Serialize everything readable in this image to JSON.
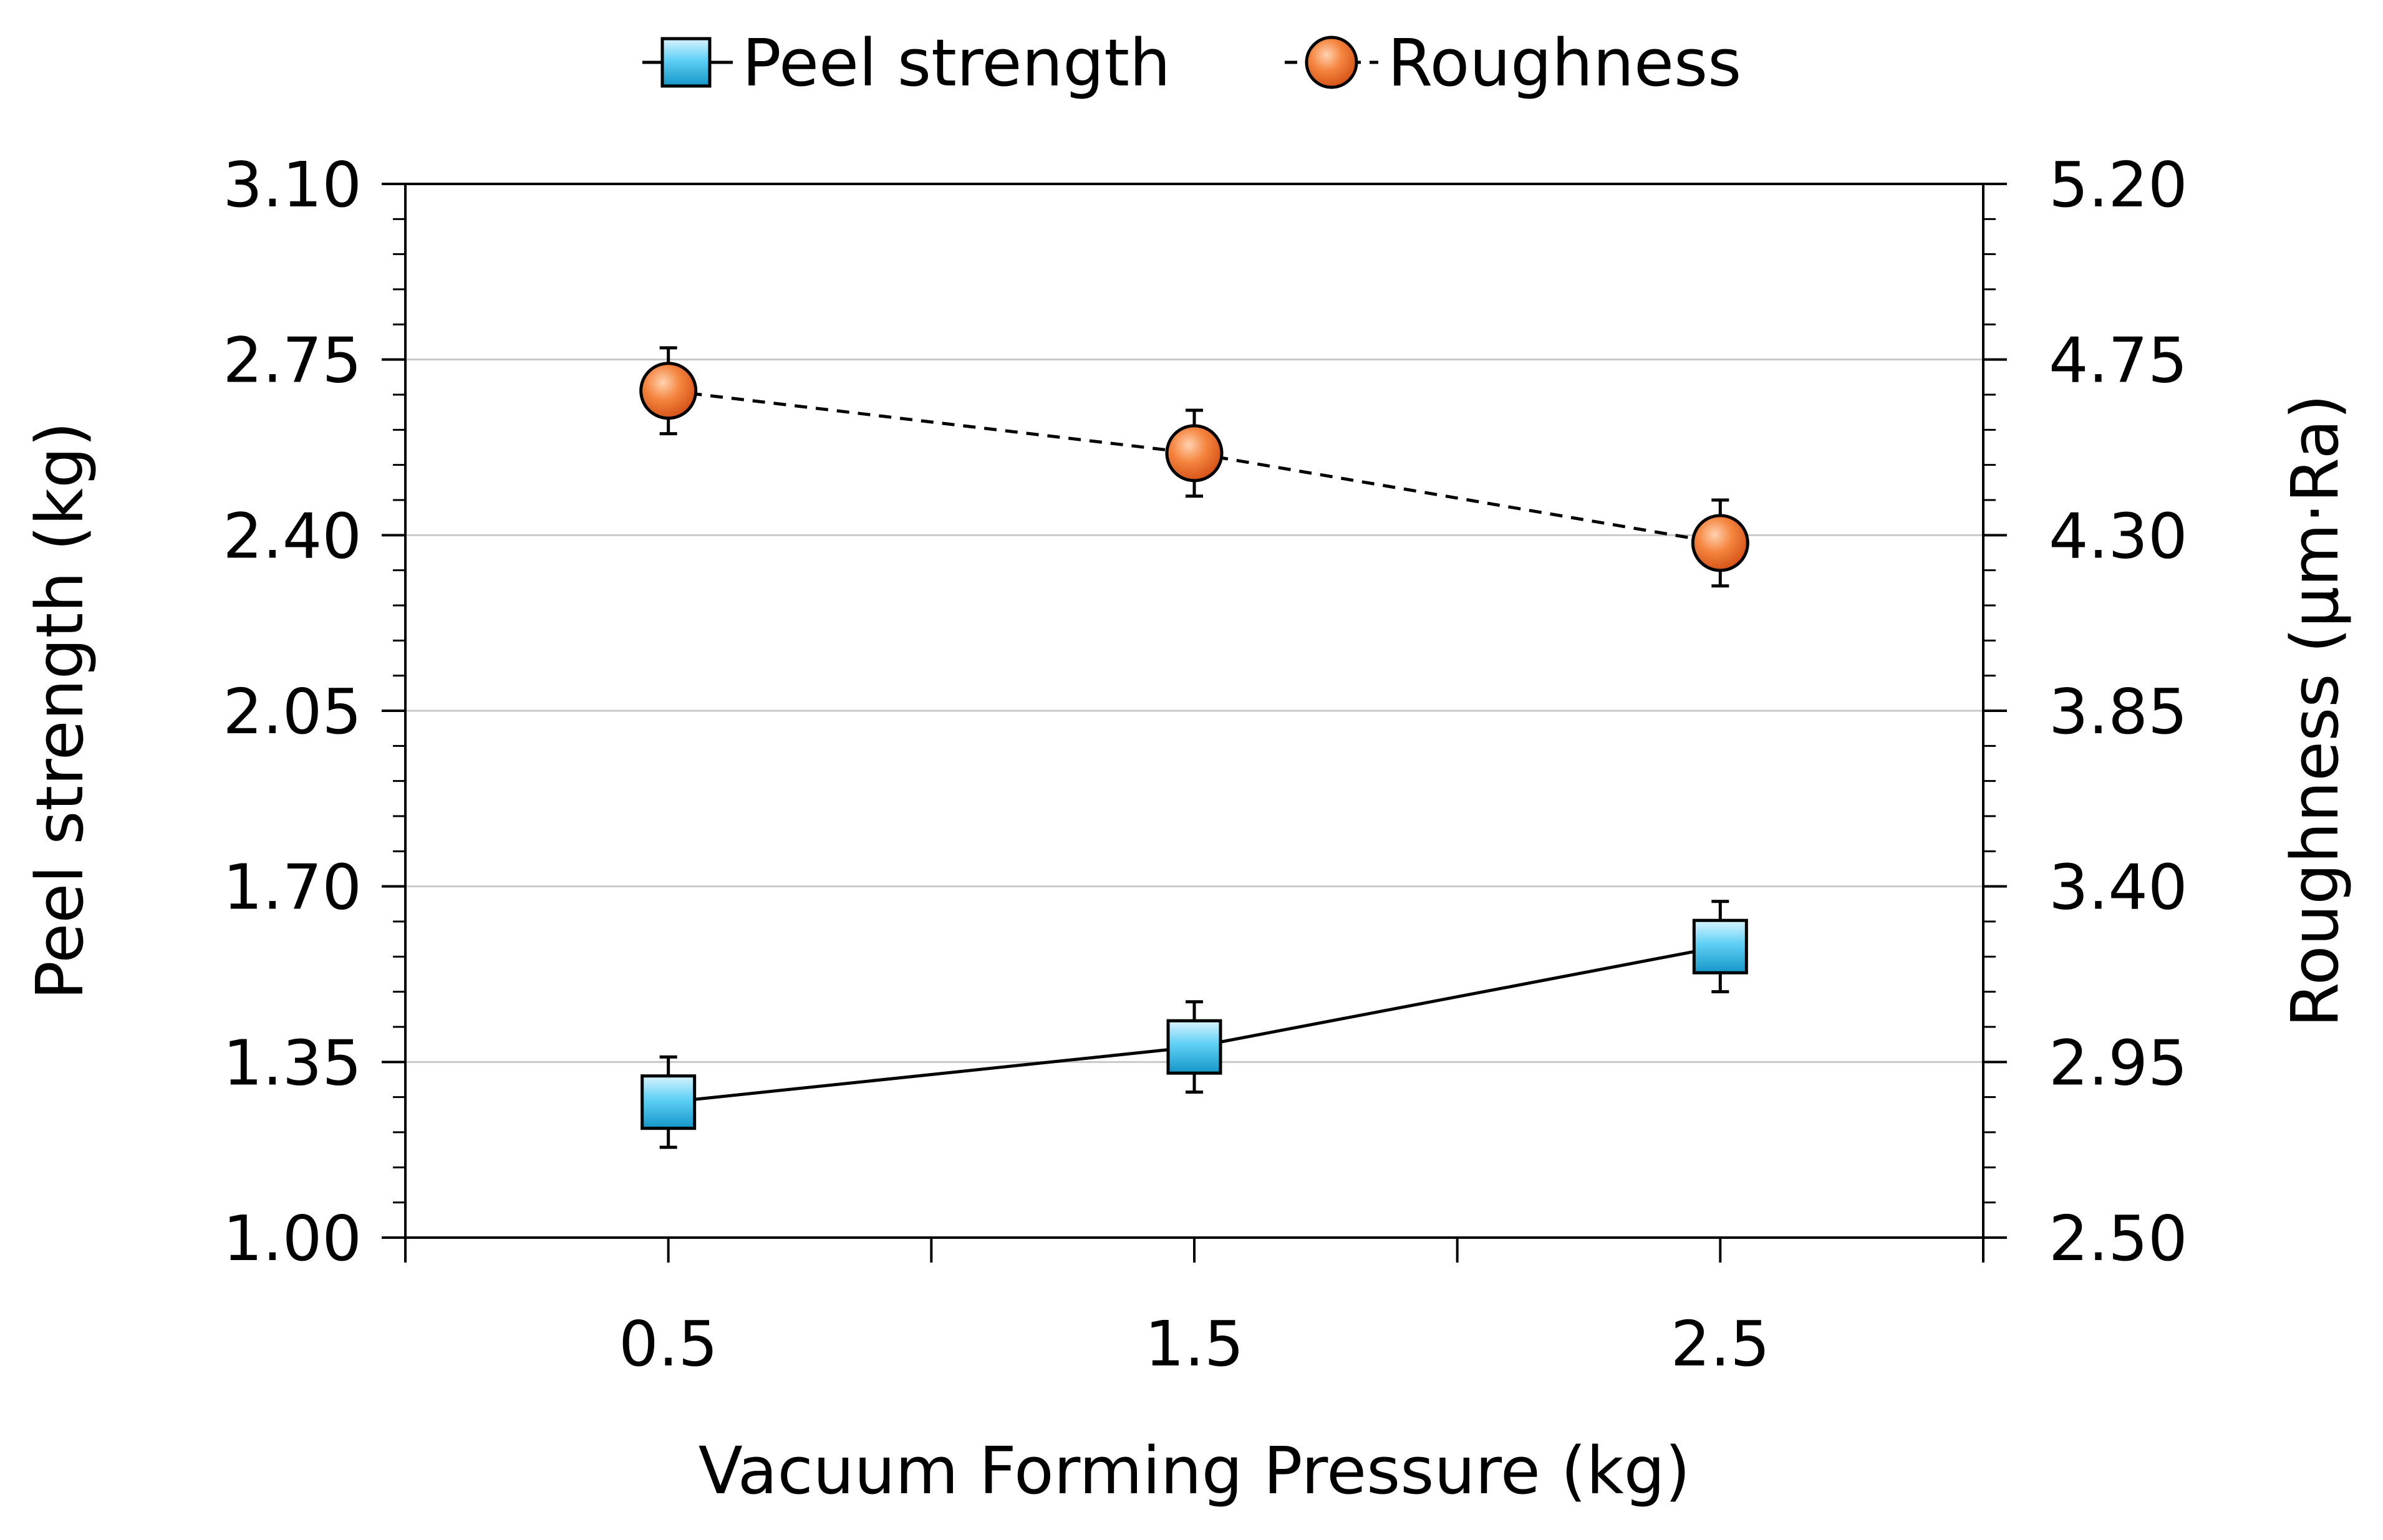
{
  "chart_data": {
    "type": "line",
    "title": "",
    "xlabel": "Vacuum Forming Pressure (kg)",
    "ylabel_left": "Peel strength (kg)",
    "ylabel_right": "Roughness (μm·Ra)",
    "x": [
      0.5,
      1.5,
      2.5
    ],
    "x_tick_labels": [
      "0.5",
      "1.5",
      "2.5"
    ],
    "xlim": [
      0,
      3
    ],
    "ylim_left": [
      1.0,
      3.1
    ],
    "ylim_right": [
      2.5,
      5.2
    ],
    "y_ticks_left": [
      "1.00",
      "1.35",
      "1.70",
      "2.05",
      "2.40",
      "2.75",
      "3.10"
    ],
    "y_ticks_right": [
      "2.50",
      "2.95",
      "3.40",
      "3.85",
      "4.30",
      "4.75",
      "5.20"
    ],
    "grid": true,
    "legend": "top-center",
    "series": [
      {
        "name": "Peel strength",
        "axis": "left",
        "values": [
          1.27,
          1.38,
          1.58
        ],
        "errors": [
          0.09,
          0.09,
          0.09
        ],
        "marker": "square",
        "line": "solid",
        "color": "#2bb5e3"
      },
      {
        "name": "Roughness",
        "axis": "right",
        "values": [
          4.67,
          4.51,
          4.28
        ],
        "errors": [
          0.11,
          0.11,
          0.11
        ],
        "marker": "circle",
        "line": "dashed",
        "color": "#f06a2a"
      }
    ]
  }
}
